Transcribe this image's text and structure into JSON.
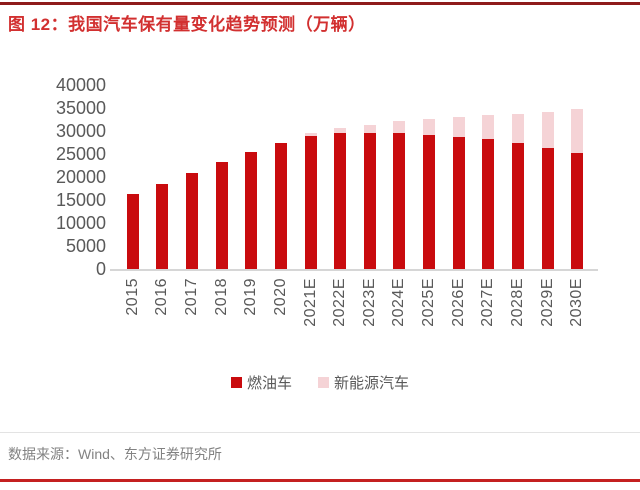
{
  "header": {
    "title": "图 12：我国汽车保有量变化趋势预测（万辆）"
  },
  "footer": {
    "source": "数据来源：Wind、东方证券研究所"
  },
  "colors": {
    "fuel_bar": "#c90b0e",
    "nev_bar": "#f5d3d6",
    "title_red": "#d23030",
    "top_rule": "#8e1b1b",
    "bottom_rule": "#c42020",
    "axis_text": "#595959",
    "axis_line": "#d6d6d6",
    "source_text": "#828282"
  },
  "chart_data": {
    "type": "bar",
    "stacked": true,
    "title": "我国汽车保有量变化趋势预测（万辆）",
    "xlabel": "",
    "ylabel": "",
    "grid": false,
    "legend_position": "bottom",
    "ylim": [
      0,
      40000
    ],
    "yticks": [
      0,
      5000,
      10000,
      15000,
      20000,
      25000,
      30000,
      35000,
      40000
    ],
    "categories": [
      "2015",
      "2016",
      "2017",
      "2018",
      "2019",
      "2020",
      "2021E",
      "2022E",
      "2023E",
      "2024E",
      "2025E",
      "2026E",
      "2027E",
      "2028E",
      "2029E",
      "2030E"
    ],
    "series": [
      {
        "name": "燃油车",
        "color_key": "fuel_bar",
        "values": [
          16300,
          18500,
          20900,
          23200,
          25400,
          27400,
          29000,
          29500,
          29600,
          29600,
          29200,
          28700,
          28200,
          27300,
          26300,
          25200
        ]
      },
      {
        "name": "新能源汽车",
        "color_key": "nev_bar",
        "values": [
          0,
          0,
          0,
          0,
          0,
          0,
          500,
          1100,
          1800,
          2600,
          3500,
          4400,
          5200,
          6400,
          7900,
          9600
        ]
      }
    ]
  }
}
